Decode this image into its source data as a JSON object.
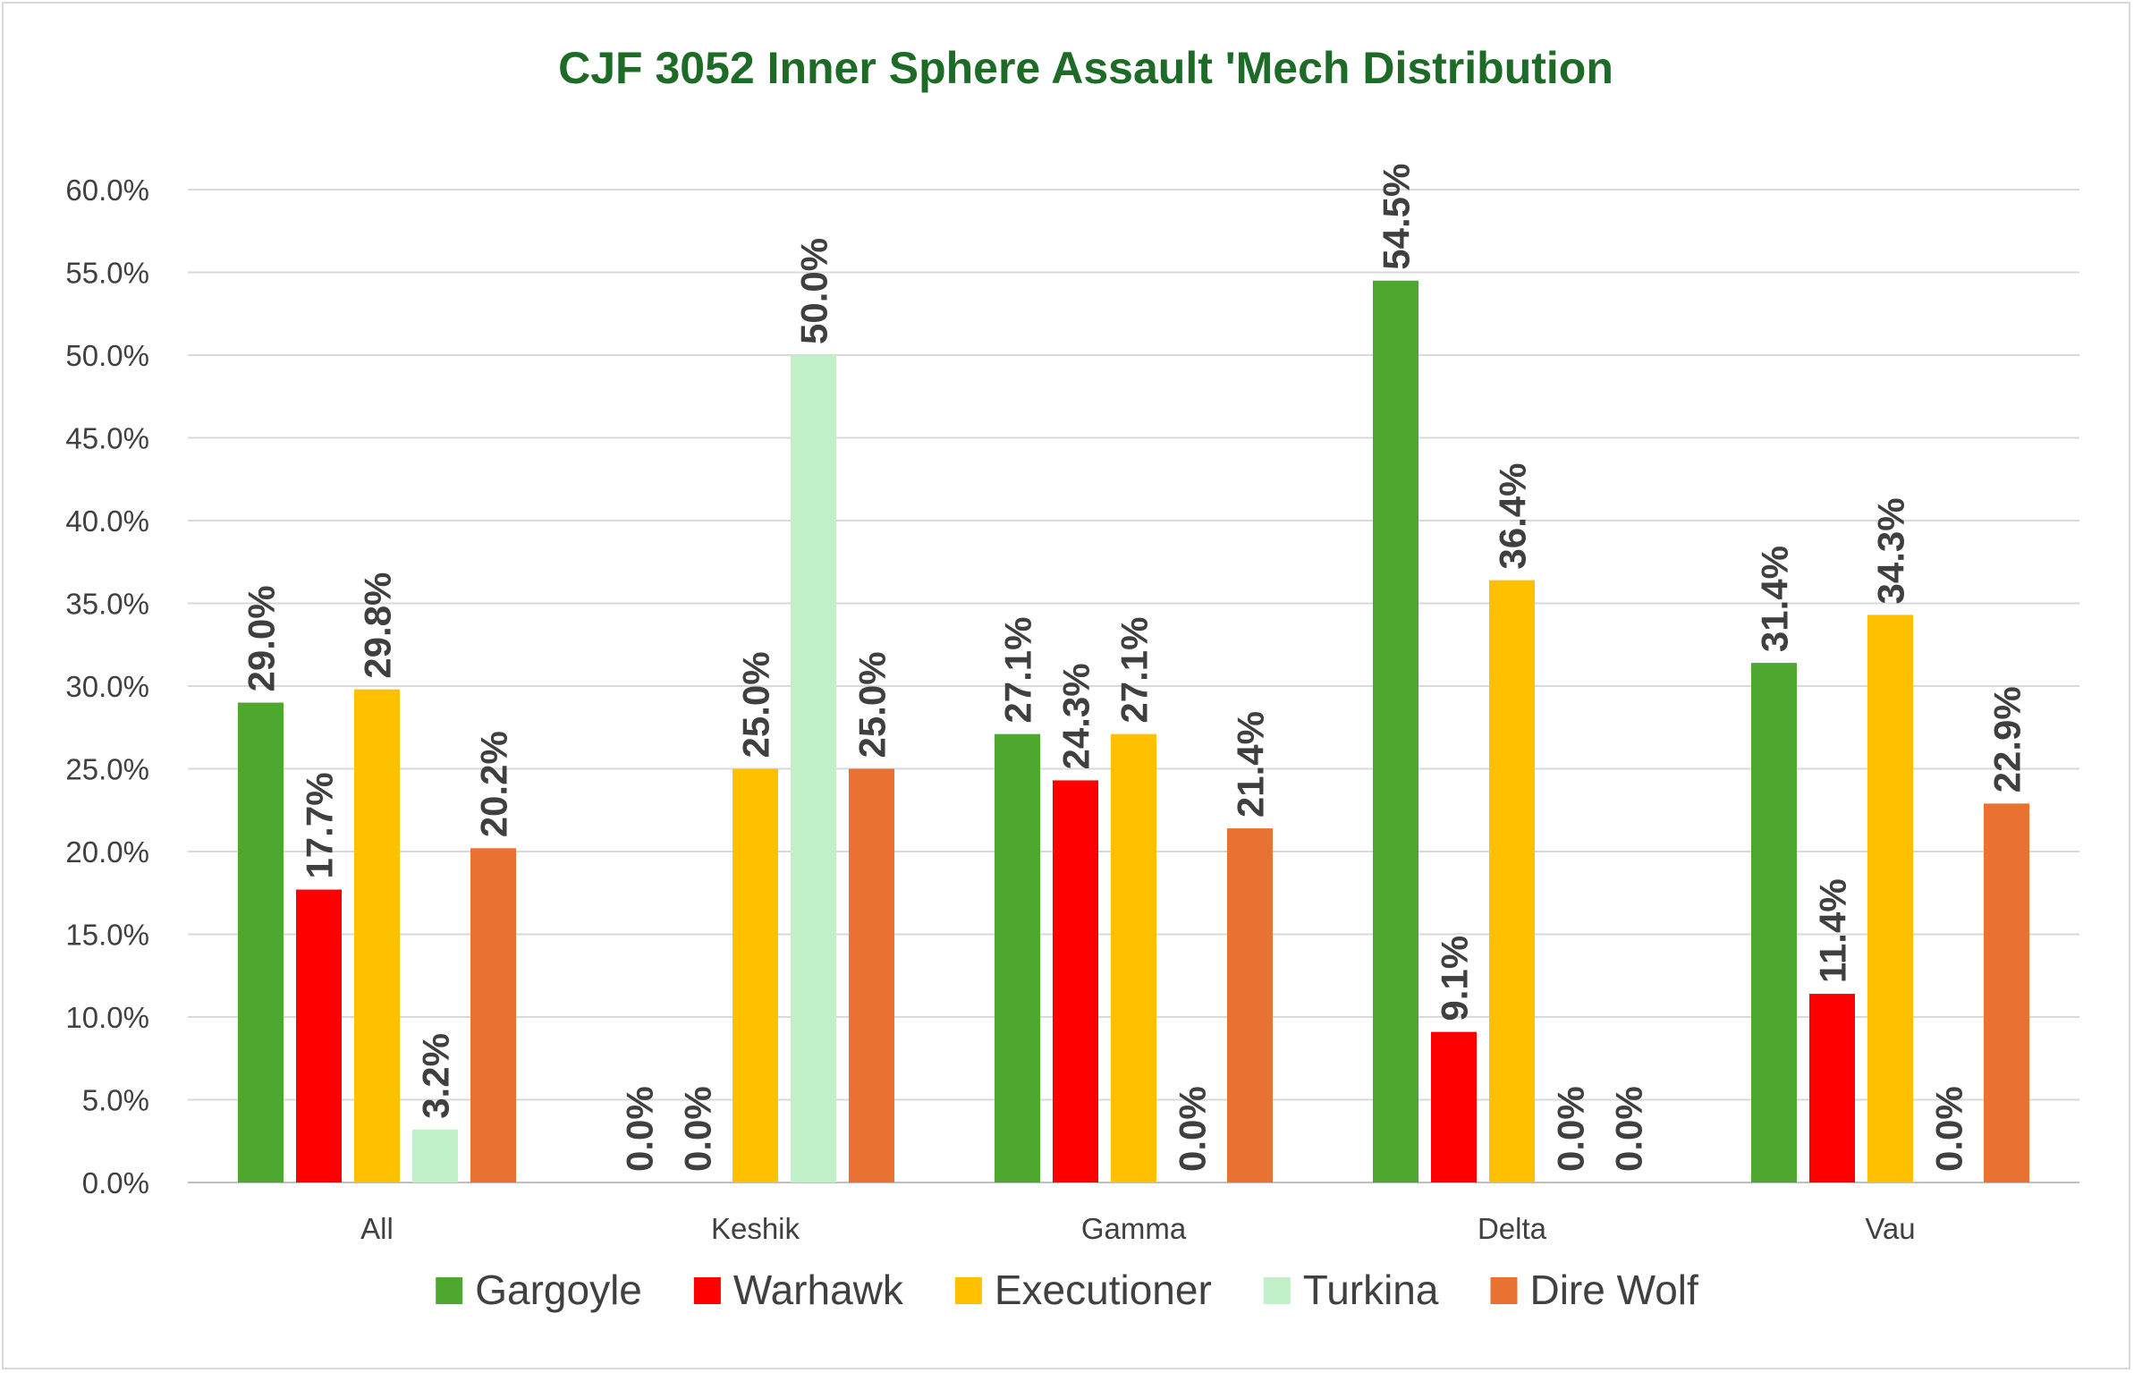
{
  "chart_data": {
    "type": "bar",
    "title": "CJF 3052 Inner Sphere Assault 'Mech Distribution",
    "categories": [
      "All",
      "Keshik",
      "Gamma",
      "Delta",
      "Vau"
    ],
    "series": [
      {
        "name": "Gargoyle",
        "color": "#4ea72e",
        "values": [
          29.0,
          0.0,
          27.1,
          54.5,
          31.4
        ]
      },
      {
        "name": "Warhawk",
        "color": "#ff0000",
        "values": [
          17.7,
          0.0,
          24.3,
          9.1,
          11.4
        ]
      },
      {
        "name": "Executioner",
        "color": "#ffc000",
        "values": [
          29.8,
          25.0,
          27.1,
          36.4,
          34.3
        ]
      },
      {
        "name": "Turkina",
        "color": "#c1f0c8",
        "values": [
          3.2,
          50.0,
          0.0,
          0.0,
          0.0
        ]
      },
      {
        "name": "Dire Wolf",
        "color": "#e97132",
        "values": [
          20.2,
          25.0,
          21.4,
          0.0,
          22.9
        ]
      }
    ],
    "ylim": [
      0,
      60
    ],
    "yticks": [
      "0.0%",
      "5.0%",
      "10.0%",
      "15.0%",
      "20.0%",
      "25.0%",
      "30.0%",
      "35.0%",
      "40.0%",
      "45.0%",
      "50.0%",
      "55.0%",
      "60.0%"
    ],
    "grid": true,
    "legend_position": "bottom"
  }
}
